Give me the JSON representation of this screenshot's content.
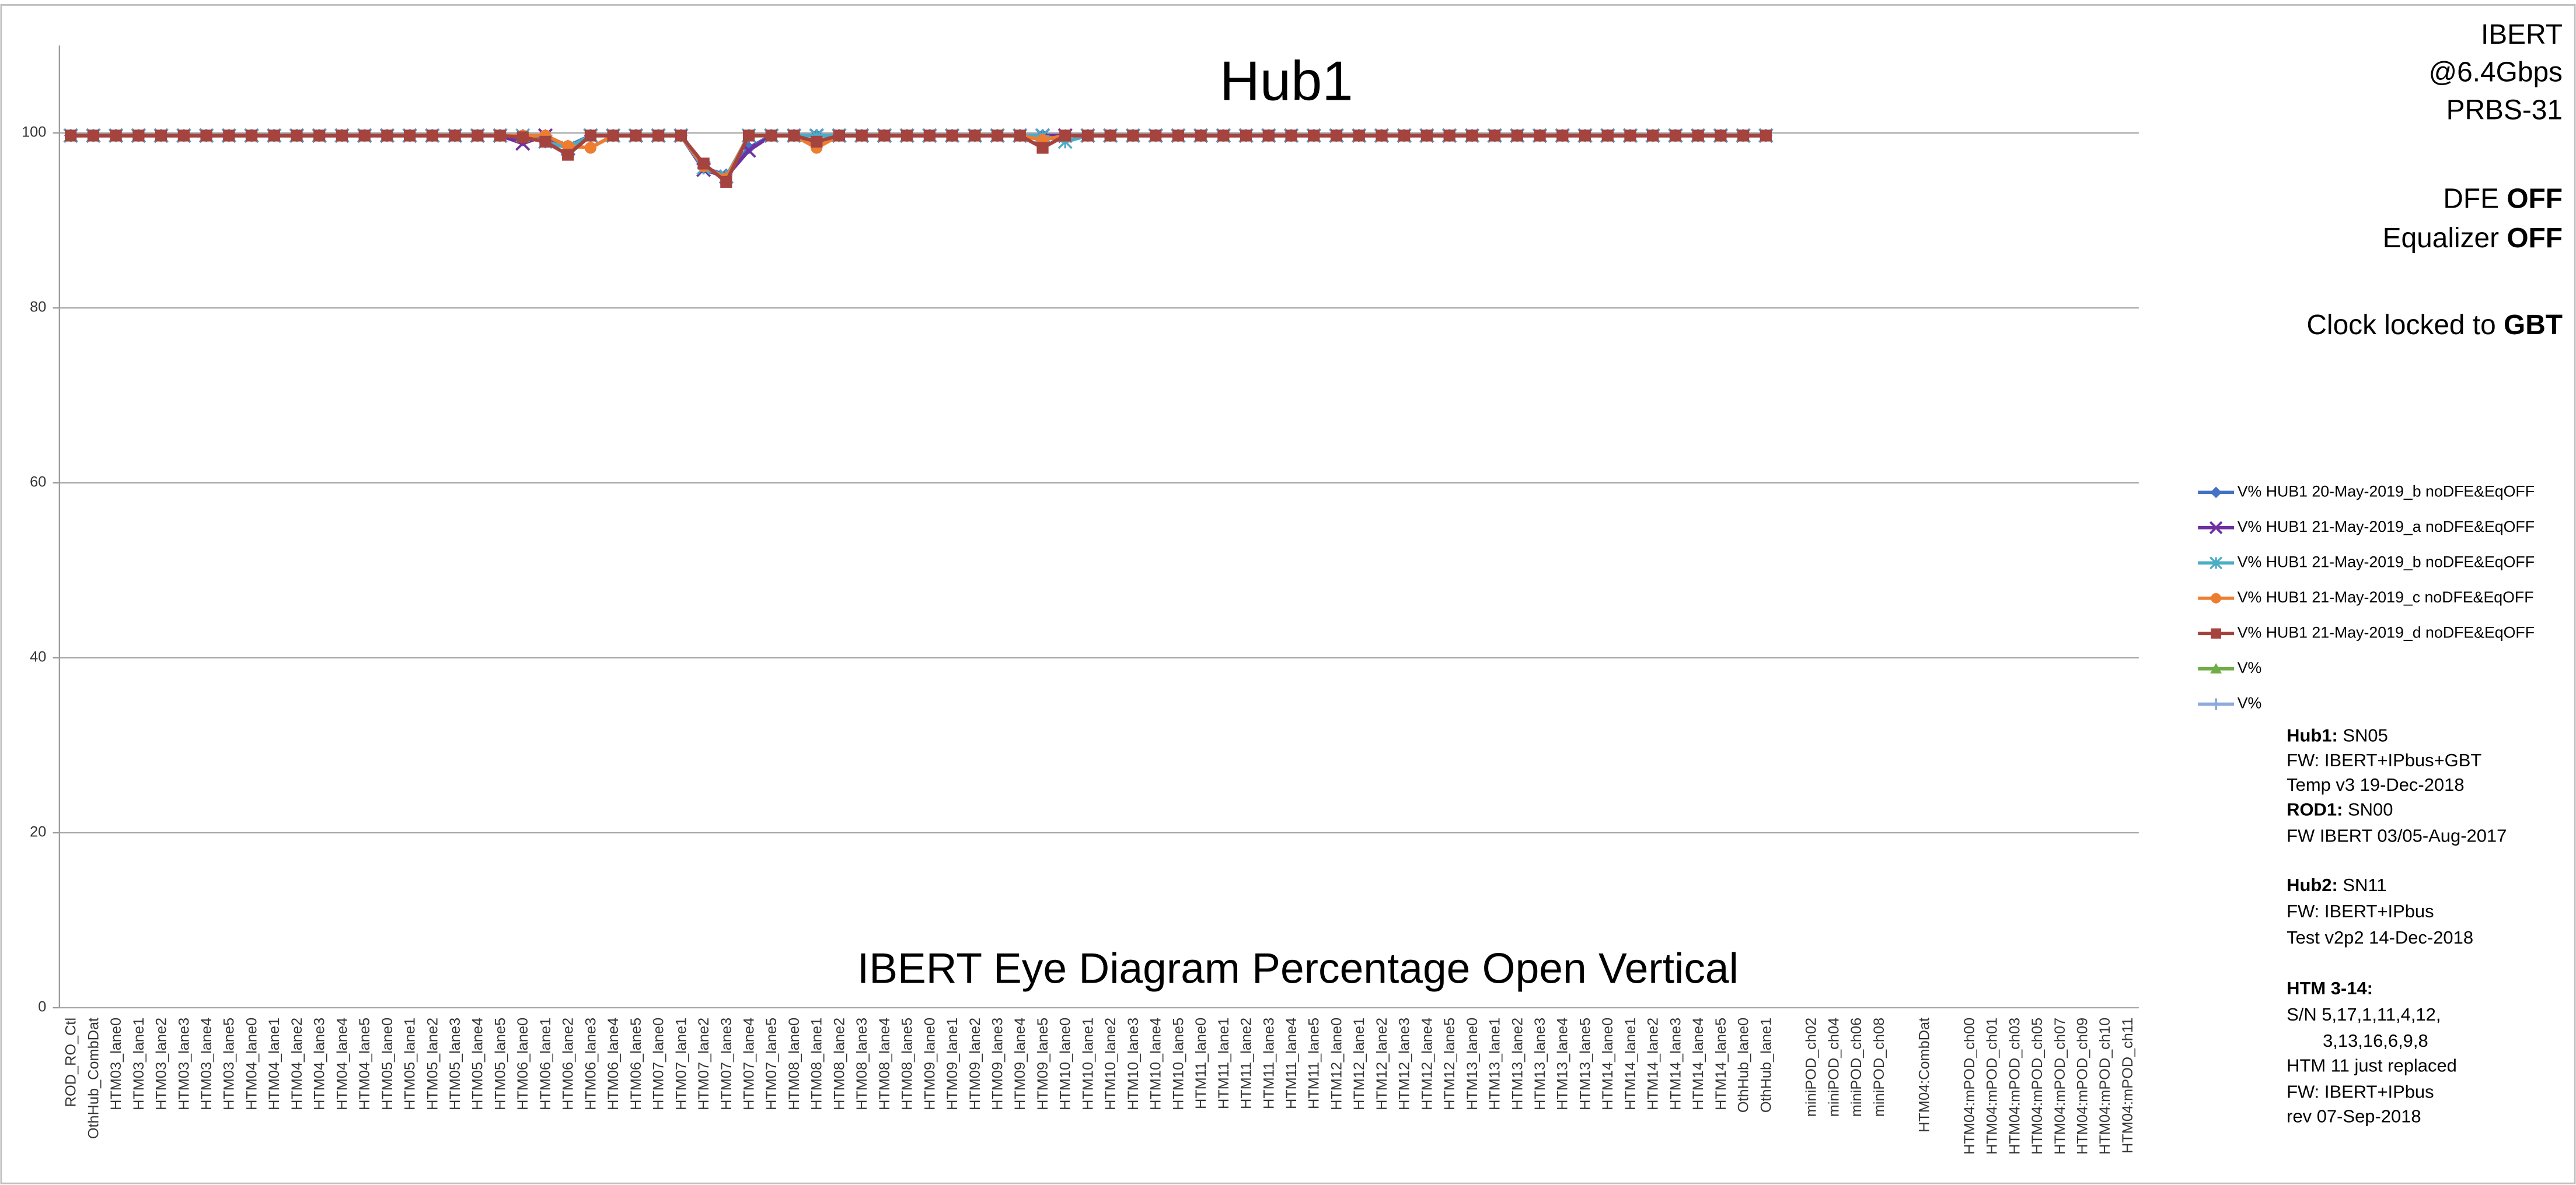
{
  "chart_data": {
    "type": "line",
    "title": "Hub1",
    "annotation": "IBERT Eye Diagram Percentage Open Vertical",
    "categories": [
      "ROD_RO_Ctl",
      "OthHub_CombDat",
      "HTM03_lane0",
      "HTM03_lane1",
      "HTM03_lane2",
      "HTM03_lane3",
      "HTM03_lane4",
      "HTM03_lane5",
      "HTM04_lane0",
      "HTM04_lane1",
      "HTM04_lane2",
      "HTM04_lane3",
      "HTM04_lane4",
      "HTM04_lane5",
      "HTM05_lane0",
      "HTM05_lane1",
      "HTM05_lane2",
      "HTM05_lane3",
      "HTM05_lane4",
      "HTM05_lane5",
      "HTM06_lane0",
      "HTM06_lane1",
      "HTM06_lane2",
      "HTM06_lane3",
      "HTM06_lane4",
      "HTM06_lane5",
      "HTM07_lane0",
      "HTM07_lane1",
      "HTM07_lane2",
      "HTM07_lane3",
      "HTM07_lane4",
      "HTM07_lane5",
      "HTM08_lane0",
      "HTM08_lane1",
      "HTM08_lane2",
      "HTM08_lane3",
      "HTM08_lane4",
      "HTM08_lane5",
      "HTM09_lane0",
      "HTM09_lane1",
      "HTM09_lane2",
      "HTM09_lane3",
      "HTM09_lane4",
      "HTM09_lane5",
      "HTM10_lane0",
      "HTM10_lane1",
      "HTM10_lane2",
      "HTM10_lane3",
      "HTM10_lane4",
      "HTM10_lane5",
      "HTM11_lane0",
      "HTM11_lane1",
      "HTM11_lane2",
      "HTM11_lane3",
      "HTM11_lane4",
      "HTM11_lane5",
      "HTM12_lane0",
      "HTM12_lane1",
      "HTM12_lane2",
      "HTM12_lane3",
      "HTM12_lane4",
      "HTM12_lane5",
      "HTM13_lane0",
      "HTM13_lane1",
      "HTM13_lane2",
      "HTM13_lane3",
      "HTM13_lane4",
      "HTM13_lane5",
      "HTM14_lane0",
      "HTM14_lane1",
      "HTM14_lane2",
      "HTM14_lane3",
      "HTM14_lane4",
      "HTM14_lane5",
      "OthHub_lane0",
      "OthHub_lane1",
      null,
      "miniPOD_ch02",
      "miniPOD_ch04",
      "miniPOD_ch06",
      "miniPOD_ch08",
      null,
      "HTM04:CombDat",
      null,
      "HTM04:mPOD_ch00",
      "HTM04:mPOD_ch01",
      "HTM04:mPOD_ch03",
      "HTM04:mPOD_ch05",
      "HTM04:mPOD_ch07",
      "HTM04:mPOD_ch09",
      "HTM04:mPOD_ch10",
      "HTM04:mPOD_ch11"
    ],
    "series": [
      {
        "name": "V% HUB1  20-May-2019_b noDFE&EqOFF",
        "color": "#4472c4",
        "marker": "diamond",
        "values": [
          99.7,
          99.7,
          99.7,
          99.7,
          99.7,
          99.7,
          99.7,
          99.7,
          99.7,
          99.7,
          99.7,
          99.7,
          99.7,
          99.7,
          99.7,
          99.7,
          99.7,
          99.7,
          99.7,
          99.7,
          99.2,
          99.7,
          98.5,
          99.7,
          99.7,
          99.7,
          99.7,
          99.7,
          96,
          95.2,
          98.3,
          99.7,
          99.7,
          99.7,
          99.7,
          99.7,
          99.7,
          99.7,
          99.7,
          99.7,
          99.7,
          99.7,
          99.7,
          99.7,
          99.7,
          99.7,
          99.7,
          99.7,
          99.7,
          99.7,
          99.7,
          99.7,
          99.7,
          99.7,
          99.7,
          99.7,
          99.7,
          99.7,
          99.7,
          99.7,
          99.7,
          99.7,
          99.7,
          99.7,
          99.7,
          99.7,
          99.7,
          99.7,
          99.7,
          99.7,
          99.7,
          99.7,
          99.7,
          99.7,
          99.7,
          99.7,
          null,
          null,
          null,
          null,
          null,
          null,
          null,
          null,
          null,
          null,
          null,
          null,
          null,
          null,
          null,
          null
        ]
      },
      {
        "name": "V% HUB1  21-May-2019_a noDFE&EqOFF",
        "color": "#7030a0",
        "marker": "x",
        "values": [
          99.7,
          99.7,
          99.7,
          99.7,
          99.7,
          99.7,
          99.7,
          99.7,
          99.7,
          99.7,
          99.7,
          99.7,
          99.7,
          99.7,
          99.7,
          99.7,
          99.7,
          99.7,
          99.7,
          99.7,
          98.8,
          99.7,
          98.2,
          99.7,
          99.7,
          99.7,
          99.7,
          99.7,
          95.8,
          95,
          98,
          99.7,
          99.7,
          99.7,
          99.7,
          99.7,
          99.7,
          99.7,
          99.7,
          99.7,
          99.7,
          99.7,
          99.7,
          99.7,
          99.7,
          99.7,
          99.7,
          99.7,
          99.7,
          99.7,
          99.7,
          99.7,
          99.7,
          99.7,
          99.7,
          99.7,
          99.7,
          99.7,
          99.7,
          99.7,
          99.7,
          99.7,
          99.7,
          99.7,
          99.7,
          99.7,
          99.7,
          99.7,
          99.7,
          99.7,
          99.7,
          99.7,
          99.7,
          99.7,
          99.7,
          99.7,
          null,
          null,
          null,
          null,
          null,
          null,
          null,
          null,
          null,
          null,
          null,
          null,
          null,
          null,
          null,
          null
        ]
      },
      {
        "name": "V% HUB1  21-May-2019_b noDFE&EqOFF",
        "color": "#4bacc6",
        "marker": "star",
        "values": [
          99.7,
          99.7,
          99.7,
          99.7,
          99.7,
          99.7,
          99.7,
          99.7,
          99.7,
          99.7,
          99.7,
          99.7,
          99.7,
          99.7,
          99.7,
          99.7,
          99.7,
          99.7,
          99.7,
          99.7,
          99.7,
          99,
          98.3,
          99.7,
          99.7,
          99.7,
          99.7,
          99.7,
          96,
          95,
          99.7,
          99.7,
          99.7,
          99.7,
          99.7,
          99.7,
          99.7,
          99.7,
          99.7,
          99.7,
          99.7,
          99.7,
          99.7,
          99.7,
          99,
          99.7,
          99.7,
          99.7,
          99.7,
          99.7,
          99.7,
          99.7,
          99.7,
          99.7,
          99.7,
          99.7,
          99.7,
          99.7,
          99.7,
          99.7,
          99.7,
          99.7,
          99.7,
          99.7,
          99.7,
          99.7,
          99.7,
          99.7,
          99.7,
          99.7,
          99.7,
          99.7,
          99.7,
          99.7,
          99.7,
          99.7,
          null,
          null,
          null,
          null,
          null,
          null,
          null,
          null,
          null,
          null,
          null,
          null,
          null,
          null,
          null,
          null
        ]
      },
      {
        "name": "V% HUB1  21-May-2019_c noDFE&EqOFF",
        "color": "#ed7d31",
        "marker": "circle",
        "values": [
          99.7,
          99.7,
          99.7,
          99.7,
          99.7,
          99.7,
          99.7,
          99.7,
          99.7,
          99.7,
          99.7,
          99.7,
          99.7,
          99.7,
          99.7,
          99.7,
          99.7,
          99.7,
          99.7,
          99.7,
          99.7,
          99.7,
          98.5,
          98.3,
          99.7,
          99.7,
          99.7,
          99.7,
          96.2,
          94.8,
          99.7,
          99.7,
          99.7,
          98.3,
          99.7,
          99.7,
          99.7,
          99.7,
          99.7,
          99.7,
          99.7,
          99.7,
          99.7,
          99.2,
          99.7,
          99.7,
          99.7,
          99.7,
          99.7,
          99.7,
          99.7,
          99.7,
          99.7,
          99.7,
          99.7,
          99.7,
          99.7,
          99.7,
          99.7,
          99.7,
          99.7,
          99.7,
          99.7,
          99.7,
          99.7,
          99.7,
          99.7,
          99.7,
          99.7,
          99.7,
          99.7,
          99.7,
          99.7,
          99.7,
          99.7,
          99.7,
          null,
          null,
          null,
          null,
          null,
          null,
          null,
          null,
          null,
          null,
          null,
          null,
          null,
          null,
          null,
          null
        ]
      },
      {
        "name": "V% HUB1  21-May-2019_d noDFE&EqOFF",
        "color": "#a5433f",
        "marker": "square",
        "values": [
          99.7,
          99.7,
          99.7,
          99.7,
          99.7,
          99.7,
          99.7,
          99.7,
          99.7,
          99.7,
          99.7,
          99.7,
          99.7,
          99.7,
          99.7,
          99.7,
          99.7,
          99.7,
          99.7,
          99.7,
          99.5,
          99,
          97.5,
          99.7,
          99.7,
          99.7,
          99.7,
          99.7,
          96.5,
          94.4,
          99.7,
          99.7,
          99.7,
          99,
          99.7,
          99.7,
          99.7,
          99.7,
          99.7,
          99.7,
          99.7,
          99.7,
          99.7,
          98.3,
          99.7,
          99.7,
          99.7,
          99.7,
          99.7,
          99.7,
          99.7,
          99.7,
          99.7,
          99.7,
          99.7,
          99.7,
          99.7,
          99.7,
          99.7,
          99.7,
          99.7,
          99.7,
          99.7,
          99.7,
          99.7,
          99.7,
          99.7,
          99.7,
          99.7,
          99.7,
          99.7,
          99.7,
          99.7,
          99.7,
          99.7,
          99.7,
          null,
          null,
          null,
          null,
          null,
          null,
          null,
          null,
          null,
          null,
          null,
          null,
          null,
          null,
          null,
          null
        ]
      },
      {
        "name": "V%",
        "color": "#70ad47",
        "marker": "triangle",
        "values": [
          null,
          null,
          null,
          null,
          null,
          null,
          null,
          null,
          null,
          null,
          null,
          null,
          null,
          null,
          null,
          null,
          null,
          null,
          null,
          null,
          null,
          null,
          null,
          null,
          null,
          null,
          null,
          null,
          null,
          null,
          null,
          null,
          null,
          null,
          null,
          null,
          null,
          null,
          null,
          null,
          null,
          null,
          null,
          null,
          null,
          null,
          null,
          null,
          null,
          null,
          null,
          null,
          null,
          null,
          null,
          null,
          null,
          null,
          null,
          null,
          null,
          null,
          null,
          null,
          null,
          null,
          null,
          null,
          null,
          null,
          null,
          null,
          null,
          null,
          null,
          null,
          null,
          null,
          null,
          null,
          null,
          null,
          null,
          null,
          null,
          null,
          null,
          null,
          null,
          null,
          null,
          null
        ]
      },
      {
        "name": "V%",
        "color": "#8eaadb",
        "marker": "plus",
        "values": [
          null,
          null,
          null,
          null,
          null,
          null,
          null,
          null,
          null,
          null,
          null,
          null,
          null,
          null,
          null,
          null,
          null,
          null,
          null,
          null,
          null,
          null,
          null,
          null,
          null,
          null,
          null,
          null,
          null,
          null,
          null,
          null,
          null,
          null,
          null,
          null,
          null,
          null,
          null,
          null,
          null,
          null,
          null,
          null,
          null,
          null,
          null,
          null,
          null,
          null,
          null,
          null,
          null,
          null,
          null,
          null,
          null,
          null,
          null,
          null,
          null,
          null,
          null,
          null,
          null,
          null,
          null,
          null,
          null,
          null,
          null,
          null,
          null,
          null,
          null,
          null,
          null,
          null,
          null,
          null,
          null,
          null,
          null,
          null,
          null,
          null,
          null,
          null,
          null,
          null,
          null,
          null
        ]
      }
    ],
    "ylim": [
      0,
      110
    ],
    "yticks": [
      0,
      20,
      40,
      60,
      80,
      100
    ],
    "grid": true,
    "legend": "right",
    "settings": [
      {
        "text": "IBERT"
      },
      {
        "text": "@6.4Gbps"
      },
      {
        "text": "PRBS-31"
      },
      {
        "text": "DFE",
        "bold": "OFF"
      },
      {
        "text": "Equalizer",
        "bold": "OFF"
      },
      {
        "text": "Clock locked to",
        "bold": "GBT"
      }
    ],
    "notes": [
      {
        "bold": "Hub1:",
        "text": "SN05"
      },
      {
        "text": "FW: IBERT+IPbus+GBT"
      },
      {
        "text": "Temp v3  19-Dec-2018"
      },
      {
        "bold": "ROD1:",
        "text": "SN00"
      },
      {
        "text": "FW IBERT  03/05-Aug-2017"
      },
      {
        "bold": "Hub2:",
        "text": "SN11"
      },
      {
        "text": "FW: IBERT+IPbus"
      },
      {
        "text": "Test v2p2  14-Dec-2018"
      },
      {
        "bold": "HTM 3-14:"
      },
      {
        "text": "S/N  5,17,1,11,4,12,"
      },
      {
        "text": "3,13,16,6,9,8"
      },
      {
        "text": "HTM 11 just replaced"
      },
      {
        "text": "FW: IBERT+IPbus"
      },
      {
        "text": "rev  07-Sep-2018"
      }
    ]
  }
}
